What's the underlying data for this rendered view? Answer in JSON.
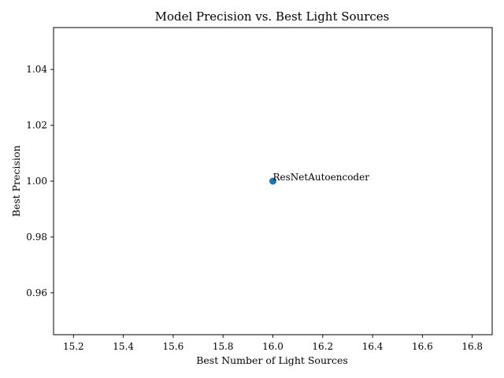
{
  "chart_data": {
    "type": "scatter",
    "title": "Model Precision vs. Best Light Sources",
    "xlabel": "Best Number of Light Sources",
    "ylabel": "Best Precision",
    "xlim": [
      15.12,
      16.88
    ],
    "ylim": [
      0.945,
      1.055
    ],
    "xticks": [
      "15.2",
      "15.4",
      "15.6",
      "15.8",
      "16.0",
      "16.2",
      "16.4",
      "16.6",
      "16.8"
    ],
    "yticks": [
      "0.96",
      "0.98",
      "1.00",
      "1.02",
      "1.04"
    ],
    "grid": false,
    "points": [
      {
        "x": 16.0,
        "y": 1.0,
        "label": "ResNetAutoencoder"
      }
    ],
    "marker_color": "#1f77b4"
  }
}
